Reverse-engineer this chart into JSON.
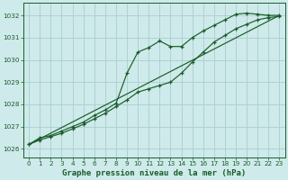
{
  "title": "Graphe pression niveau de la mer (hPa)",
  "title_fontsize": 6.5,
  "bg_color": "#ceeaea",
  "grid_color": "#aacece",
  "line_color": "#1a5c2a",
  "xlim": [
    -0.5,
    23.5
  ],
  "ylim": [
    1025.6,
    1032.55
  ],
  "yticks": [
    1026,
    1027,
    1028,
    1029,
    1030,
    1031,
    1032
  ],
  "xticks": [
    0,
    1,
    2,
    3,
    4,
    5,
    6,
    7,
    8,
    9,
    10,
    11,
    12,
    13,
    14,
    15,
    16,
    17,
    18,
    19,
    20,
    21,
    22,
    23
  ],
  "series1_x": [
    0,
    1,
    2,
    3,
    4,
    5,
    6,
    7,
    8,
    9,
    10,
    11,
    12,
    13,
    14,
    15,
    16,
    17,
    18,
    19,
    20,
    21,
    22,
    23
  ],
  "series1_y": [
    1026.2,
    1026.5,
    1026.6,
    1026.8,
    1027.0,
    1027.2,
    1027.5,
    1027.75,
    1028.05,
    1029.4,
    1030.35,
    1030.55,
    1030.85,
    1030.6,
    1030.6,
    1031.0,
    1031.3,
    1031.55,
    1031.8,
    1032.05,
    1032.1,
    1032.05,
    1032.0,
    1032.0
  ],
  "series2_x": [
    0,
    1,
    2,
    3,
    4,
    5,
    6,
    7,
    8,
    9,
    10,
    11,
    12,
    13,
    14,
    15,
    16,
    17,
    18,
    19,
    20,
    21,
    22,
    23
  ],
  "series2_y": [
    1026.2,
    1026.4,
    1026.55,
    1026.7,
    1026.9,
    1027.1,
    1027.35,
    1027.6,
    1027.9,
    1028.2,
    1028.55,
    1028.7,
    1028.85,
    1029.0,
    1029.4,
    1029.9,
    1030.35,
    1030.8,
    1031.1,
    1031.4,
    1031.6,
    1031.8,
    1031.9,
    1031.95
  ],
  "series3_x": [
    0,
    23
  ],
  "series3_y": [
    1026.2,
    1032.0
  ]
}
